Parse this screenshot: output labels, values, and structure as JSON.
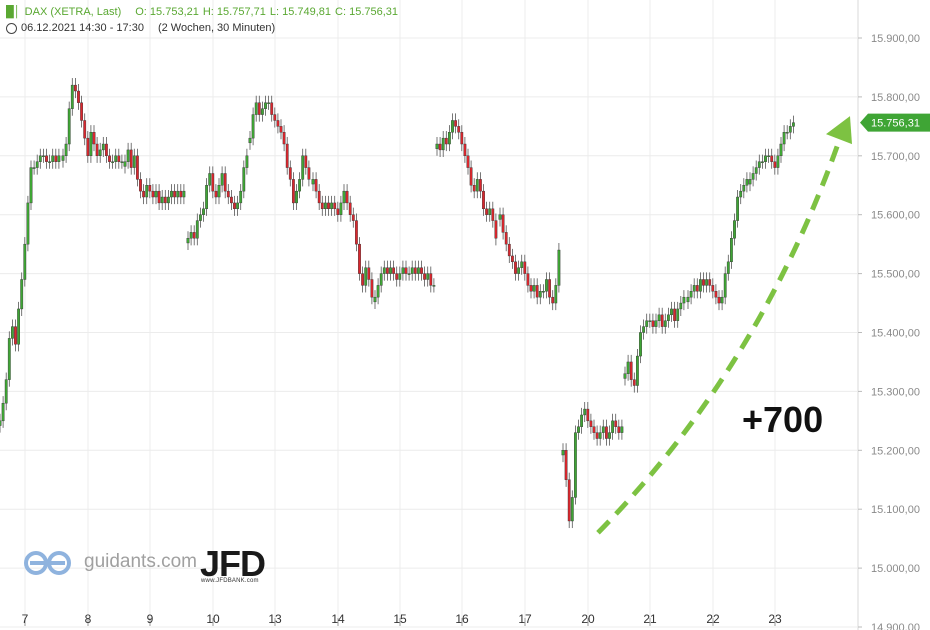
{
  "header": {
    "instrument": "DAX (XETRA, Last)",
    "open": "O: 15.753,21",
    "high": "H: 15.757,71",
    "low": "L: 15.749,81",
    "close": "C: 15.756,31",
    "timeframe": "06.12.2021 14:30 - 17:30",
    "period": "(2 Wochen, 30 Minuten)"
  },
  "colors": {
    "up": "#3fa535",
    "down": "#d9272e",
    "accent": "#7dc242",
    "grid": "#ececec",
    "axis_text": "#8a8a8a"
  },
  "annotation": {
    "text": "+700"
  },
  "branding": {
    "guidants": "guidants.com",
    "jfd": "JFD",
    "jfd_url": "www.JFDBANK.com"
  },
  "chart_data": {
    "type": "candlestick",
    "y_axis": {
      "side": "right",
      "min": 14900,
      "max": 15950,
      "ticks": [
        14900,
        15000,
        15100,
        15200,
        15300,
        15400,
        15500,
        15600,
        15700,
        15800,
        15900
      ],
      "tick_labels": [
        "14.900,00",
        "15.000,00",
        "15.100,00",
        "15.200,00",
        "15.300,00",
        "15.400,00",
        "15.500,00",
        "15.600,00",
        "15.700,00",
        "15.800,00",
        "15.900,00"
      ]
    },
    "x_axis": {
      "tick_labels": [
        "7",
        "8",
        "9",
        "10",
        "13",
        "14",
        "15",
        "16",
        "17",
        "20",
        "21",
        "22",
        "23"
      ]
    },
    "grid": true,
    "last_price": {
      "value": 15756.31,
      "label": "15.756,31"
    },
    "trend_arrow": {
      "from": 15060,
      "to": 15730,
      "style": "dashed"
    },
    "sessions": [
      {
        "day": "7",
        "candles": [
          15250,
          15280,
          15320,
          15390,
          15410,
          15380,
          15440,
          15490,
          15550,
          15620,
          15680,
          15680,
          15690,
          15700,
          15700,
          15690,
          15690,
          15700,
          15690,
          15700
        ]
      },
      {
        "day": "8",
        "candles": [
          15700,
          15720,
          15780,
          15820,
          15810,
          15790,
          15760,
          15730,
          15700,
          15740,
          15720,
          15700,
          15710,
          15720,
          15700,
          15690,
          15690,
          15700,
          15690,
          15690
        ]
      },
      {
        "day": "9",
        "candles": [
          15690,
          15710,
          15680,
          15700,
          15660,
          15640,
          15630,
          15650,
          15640,
          15630,
          15640,
          15620,
          15630,
          15620,
          15630,
          15640,
          15630,
          15640,
          15630,
          15640
        ]
      },
      {
        "day": "10",
        "candles": [
          15560,
          15570,
          15560,
          15590,
          15600,
          15610,
          15650,
          15670,
          15640,
          15630,
          15650,
          15670,
          15640,
          15630,
          15620,
          15610,
          15620,
          15640,
          15680,
          15700
        ]
      },
      {
        "day": "13",
        "candles": [
          15730,
          15770,
          15790,
          15770,
          15780,
          15790,
          15790,
          15770,
          15760,
          15750,
          15740,
          15720,
          15680,
          15660,
          15620,
          15640,
          15660,
          15700,
          15680,
          15660
        ]
      },
      {
        "day": "14",
        "candles": [
          15660,
          15640,
          15620,
          15610,
          15620,
          15610,
          15620,
          15610,
          15600,
          15620,
          15640,
          15620,
          15600,
          15590,
          15550,
          15500,
          15480,
          15510,
          15490,
          15460
        ]
      },
      {
        "day": "15",
        "candles": [
          15460,
          15480,
          15500,
          15510,
          15500,
          15510,
          15500,
          15490,
          15500,
          15510,
          15500,
          15500,
          15510,
          15500,
          15510,
          15500,
          15490,
          15500,
          15480,
          15480
        ]
      },
      {
        "day": "16",
        "candles": [
          15720,
          15710,
          15730,
          15720,
          15740,
          15760,
          15750,
          15740,
          15720,
          15700,
          15680,
          15650,
          15640,
          15660,
          15640,
          15610,
          15600,
          15610,
          15590,
          15560
        ]
      },
      {
        "day": "17",
        "candles": [
          15600,
          15570,
          15550,
          15530,
          15520,
          15500,
          15510,
          15520,
          15500,
          15480,
          15470,
          15480,
          15460,
          15470,
          15470,
          15490,
          15460,
          15450,
          15480,
          15540
        ]
      },
      {
        "day": "20",
        "candles": [
          15200,
          15150,
          15080,
          15120,
          15230,
          15240,
          15260,
          15270,
          15250,
          15240,
          15230,
          15220,
          15230,
          15240,
          15220,
          15230,
          15250,
          15240,
          15230,
          15240
        ]
      },
      {
        "day": "21",
        "candles": [
          15330,
          15350,
          15320,
          15310,
          15360,
          15400,
          15410,
          15420,
          15420,
          15410,
          15420,
          15430,
          15410,
          15420,
          15430,
          15440,
          15420,
          15440,
          15450,
          15460
        ]
      },
      {
        "day": "22",
        "candles": [
          15460,
          15470,
          15480,
          15470,
          15490,
          15480,
          15490,
          15480,
          15470,
          15460,
          15450,
          15460,
          15500,
          15520,
          15560,
          15590,
          15630,
          15640,
          15650,
          15660
        ]
      },
      {
        "day": "23",
        "candles": [
          15660,
          15670,
          15680,
          15690,
          15690,
          15700,
          15700,
          15690,
          15680,
          15700,
          15720,
          15740,
          15740,
          15750,
          15756.31
        ]
      }
    ]
  }
}
